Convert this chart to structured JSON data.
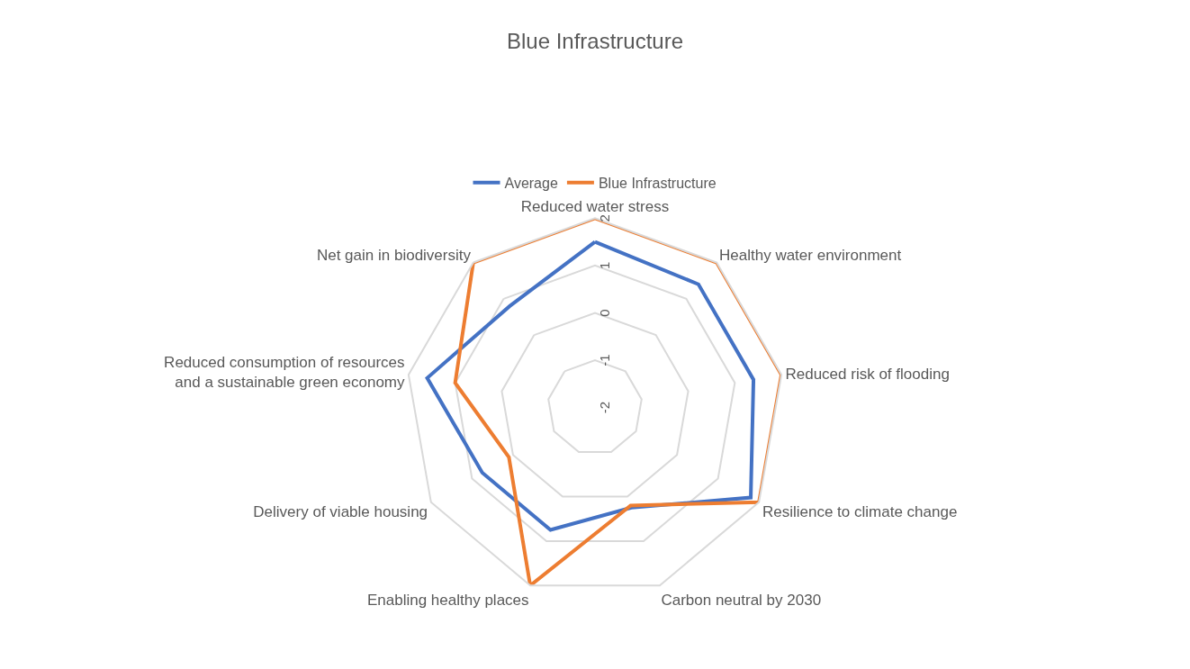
{
  "chart_data": {
    "type": "radar",
    "title": "Blue Infrastructure",
    "categories": [
      "Reduced water stress",
      "Healthy water environment",
      "Reduced risk of flooding",
      "Resilience to climate change",
      "Carbon neutral by 2030",
      "Enabling healthy places",
      "Delivery of viable housing",
      "Reduced consumption of resources and a sustainable green economy",
      "Net gain in biodiversity"
    ],
    "series": [
      {
        "name": "Average",
        "color": "#4472c4",
        "values": [
          1.5,
          1.4,
          1.4,
          1.8,
          0.25,
          0.75,
          0.75,
          1.6,
          0.8
        ]
      },
      {
        "name": "Blue Infrastructure",
        "color": "#ed7d31",
        "values": [
          2,
          2,
          2,
          2,
          0.2,
          2,
          0.1,
          1,
          2
        ]
      }
    ],
    "ylim": [
      -2,
      2
    ],
    "yticks": [
      -2,
      -1,
      0,
      1,
      2
    ],
    "grid": "y",
    "legend": "top",
    "line_style": "solid",
    "marker": "none"
  }
}
